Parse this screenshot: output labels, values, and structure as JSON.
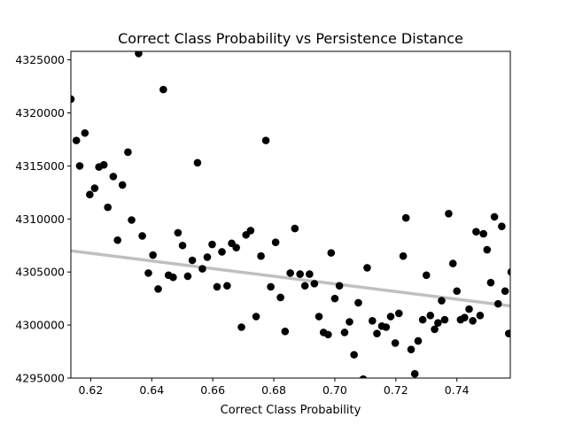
{
  "chart_data": {
    "type": "scatter",
    "title": "Correct Class Probability vs Persistence Distance",
    "xlabel": "Correct Class Probability",
    "ylabel": "",
    "xlim": [
      0.6135,
      0.7575
    ],
    "ylim": [
      4295000,
      4325800
    ],
    "xticks": [
      0.62,
      0.64,
      0.66,
      0.68,
      0.7,
      0.72,
      0.74
    ],
    "xtick_labels": [
      "0.62",
      "0.64",
      "0.66",
      "0.68",
      "0.70",
      "0.72",
      "0.74"
    ],
    "yticks": [
      4295000,
      4300000,
      4305000,
      4310000,
      4315000,
      4320000,
      4325000
    ],
    "ytick_labels": [
      "4295000",
      "4300000",
      "4305000",
      "4310000",
      "4315000",
      "4320000",
      "4325000"
    ],
    "grid": false,
    "marker_color": "#000000",
    "trend_color": "#c0c0c0",
    "trend_line": {
      "x": [
        0.6135,
        0.7575
      ],
      "y": [
        4307000,
        4301800
      ]
    },
    "points": [
      [
        0.6135,
        4321300
      ],
      [
        0.6153,
        4317400
      ],
      [
        0.6164,
        4315000
      ],
      [
        0.6181,
        4318100
      ],
      [
        0.6197,
        4312300
      ],
      [
        0.6213,
        4312900
      ],
      [
        0.6227,
        4314900
      ],
      [
        0.6243,
        4315100
      ],
      [
        0.6256,
        4311100
      ],
      [
        0.6274,
        4314000
      ],
      [
        0.6288,
        4308000
      ],
      [
        0.6304,
        4313200
      ],
      [
        0.6322,
        4316300
      ],
      [
        0.6334,
        4309900
      ],
      [
        0.6357,
        4325600
      ],
      [
        0.6369,
        4308400
      ],
      [
        0.6389,
        4304900
      ],
      [
        0.6404,
        4306600
      ],
      [
        0.6421,
        4303400
      ],
      [
        0.6438,
        4322200
      ],
      [
        0.6455,
        4304700
      ],
      [
        0.647,
        4304500
      ],
      [
        0.6486,
        4308700
      ],
      [
        0.6501,
        4307500
      ],
      [
        0.6518,
        4304600
      ],
      [
        0.6533,
        4306100
      ],
      [
        0.655,
        4315300
      ],
      [
        0.6566,
        4305300
      ],
      [
        0.6582,
        4306400
      ],
      [
        0.6598,
        4307600
      ],
      [
        0.6614,
        4303600
      ],
      [
        0.663,
        4306900
      ],
      [
        0.6647,
        4303700
      ],
      [
        0.6662,
        4307700
      ],
      [
        0.6677,
        4307300
      ],
      [
        0.6694,
        4299800
      ],
      [
        0.6709,
        4308500
      ],
      [
        0.6724,
        4308900
      ],
      [
        0.6742,
        4300800
      ],
      [
        0.6758,
        4306500
      ],
      [
        0.6774,
        4317400
      ],
      [
        0.679,
        4303600
      ],
      [
        0.6806,
        4307800
      ],
      [
        0.6822,
        4302600
      ],
      [
        0.6837,
        4299400
      ],
      [
        0.6854,
        4304900
      ],
      [
        0.6869,
        4309100
      ],
      [
        0.6886,
        4304800
      ],
      [
        0.6902,
        4303700
      ],
      [
        0.6917,
        4304800
      ],
      [
        0.6933,
        4303900
      ],
      [
        0.6948,
        4300800
      ],
      [
        0.6963,
        4299300
      ],
      [
        0.6978,
        4299100
      ],
      [
        0.6988,
        4306800
      ],
      [
        0.7,
        4302500
      ],
      [
        0.7015,
        4303700
      ],
      [
        0.7032,
        4299300
      ],
      [
        0.7048,
        4300300
      ],
      [
        0.7063,
        4297200
      ],
      [
        0.7077,
        4302100
      ],
      [
        0.7093,
        4294900
      ],
      [
        0.7106,
        4305400
      ],
      [
        0.7123,
        4300400
      ],
      [
        0.7138,
        4299200
      ],
      [
        0.7154,
        4299900
      ],
      [
        0.7168,
        4299800
      ],
      [
        0.7183,
        4300800
      ],
      [
        0.7198,
        4298300
      ],
      [
        0.721,
        4301100
      ],
      [
        0.7224,
        4306500
      ],
      [
        0.7233,
        4310100
      ],
      [
        0.725,
        4297700
      ],
      [
        0.7262,
        4295400
      ],
      [
        0.7273,
        4298500
      ],
      [
        0.7288,
        4300500
      ],
      [
        0.73,
        4304700
      ],
      [
        0.7313,
        4300900
      ],
      [
        0.7327,
        4299600
      ],
      [
        0.7338,
        4300200
      ],
      [
        0.735,
        4302300
      ],
      [
        0.736,
        4300500
      ],
      [
        0.7373,
        4310500
      ],
      [
        0.7387,
        4305800
      ],
      [
        0.74,
        4303200
      ],
      [
        0.7412,
        4300500
      ],
      [
        0.7425,
        4300700
      ],
      [
        0.744,
        4301500
      ],
      [
        0.7452,
        4300400
      ],
      [
        0.7463,
        4308800
      ],
      [
        0.7476,
        4300900
      ],
      [
        0.7487,
        4308600
      ],
      [
        0.7499,
        4307100
      ],
      [
        0.7511,
        4304000
      ],
      [
        0.7523,
        4310200
      ],
      [
        0.7535,
        4302000
      ],
      [
        0.7547,
        4309300
      ],
      [
        0.7558,
        4303200
      ],
      [
        0.757,
        4299200
      ],
      [
        0.7578,
        4305000
      ]
    ]
  }
}
